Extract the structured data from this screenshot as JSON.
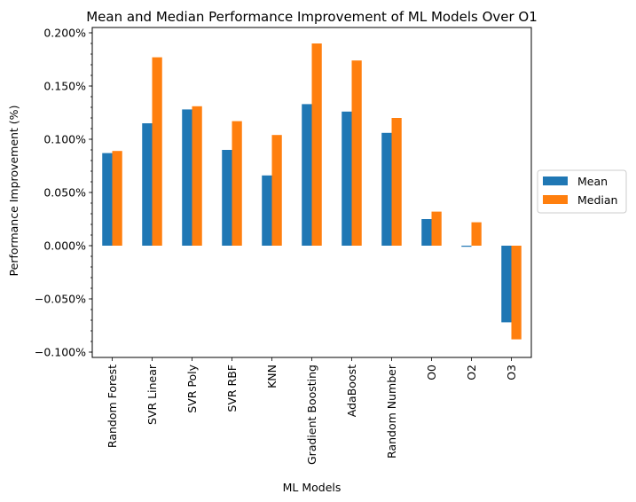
{
  "chart_data": {
    "type": "bar",
    "title": "Mean and Median Performance Improvement of ML Models Over O1",
    "xlabel": "ML Models",
    "ylabel": "Performance Improvement (%)",
    "ylim": [
      -0.00105,
      0.00205
    ],
    "yticks": [
      -0.001,
      -0.0005,
      0.0,
      0.0005,
      0.001,
      0.0015,
      0.002
    ],
    "ytick_labels": [
      "−0.100%",
      "−0.050%",
      "0.000%",
      "0.050%",
      "0.100%",
      "0.150%",
      "0.200%"
    ],
    "grid": false,
    "legend_position": "outside-right",
    "categories": [
      "Random Forest",
      "SVR Linear",
      "SVR Poly",
      "SVR RBF",
      "KNN",
      "Gradient Boosting",
      "AdaBoost",
      "Random Number",
      "O0",
      "O2",
      "O3"
    ],
    "series": [
      {
        "name": "Mean",
        "color": "#1f77b4",
        "values": [
          0.00087,
          0.00115,
          0.00128,
          0.0009,
          0.00066,
          0.00133,
          0.00126,
          0.00106,
          0.00025,
          -1e-05,
          -0.00072
        ]
      },
      {
        "name": "Median",
        "color": "#ff7f0e",
        "values": [
          0.00089,
          0.00177,
          0.00131,
          0.00117,
          0.00104,
          0.0019,
          0.00174,
          0.0012,
          0.00032,
          0.00022,
          -0.00088
        ]
      }
    ]
  }
}
